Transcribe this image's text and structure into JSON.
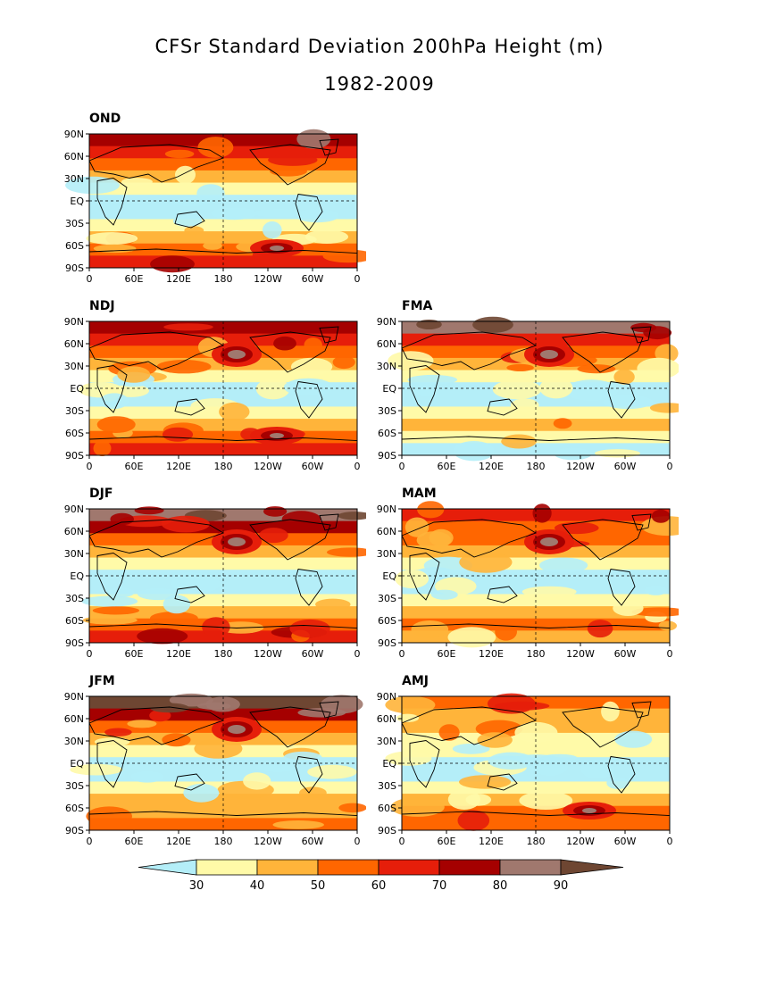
{
  "title": {
    "line1": "CFSr Standard Deviation 200hPa Height (m)",
    "line2": "1982-2009"
  },
  "panels": [
    {
      "id": "OND",
      "label": "OND"
    },
    {
      "id": "NDJ",
      "label": "NDJ"
    },
    {
      "id": "FMA",
      "label": "FMA"
    },
    {
      "id": "DJF",
      "label": "DJF"
    },
    {
      "id": "MAM",
      "label": "MAM"
    },
    {
      "id": "JFM",
      "label": "JFM"
    },
    {
      "id": "AMJ",
      "label": "AMJ"
    }
  ],
  "lat_ticks": [
    "90N",
    "60N",
    "30N",
    "EQ",
    "30S",
    "60S",
    "90S"
  ],
  "lon_ticks": [
    "0",
    "60E",
    "120E",
    "180",
    "120W",
    "60W",
    "0"
  ],
  "legend": {
    "ticks": [
      "30",
      "40",
      "50",
      "60",
      "70",
      "80",
      "90"
    ],
    "colors": [
      "#b4eef8",
      "#fffaa8",
      "#ffb43a",
      "#ff6600",
      "#e61e0a",
      "#a50000",
      "#a0786e",
      "#6e4632"
    ]
  }
}
